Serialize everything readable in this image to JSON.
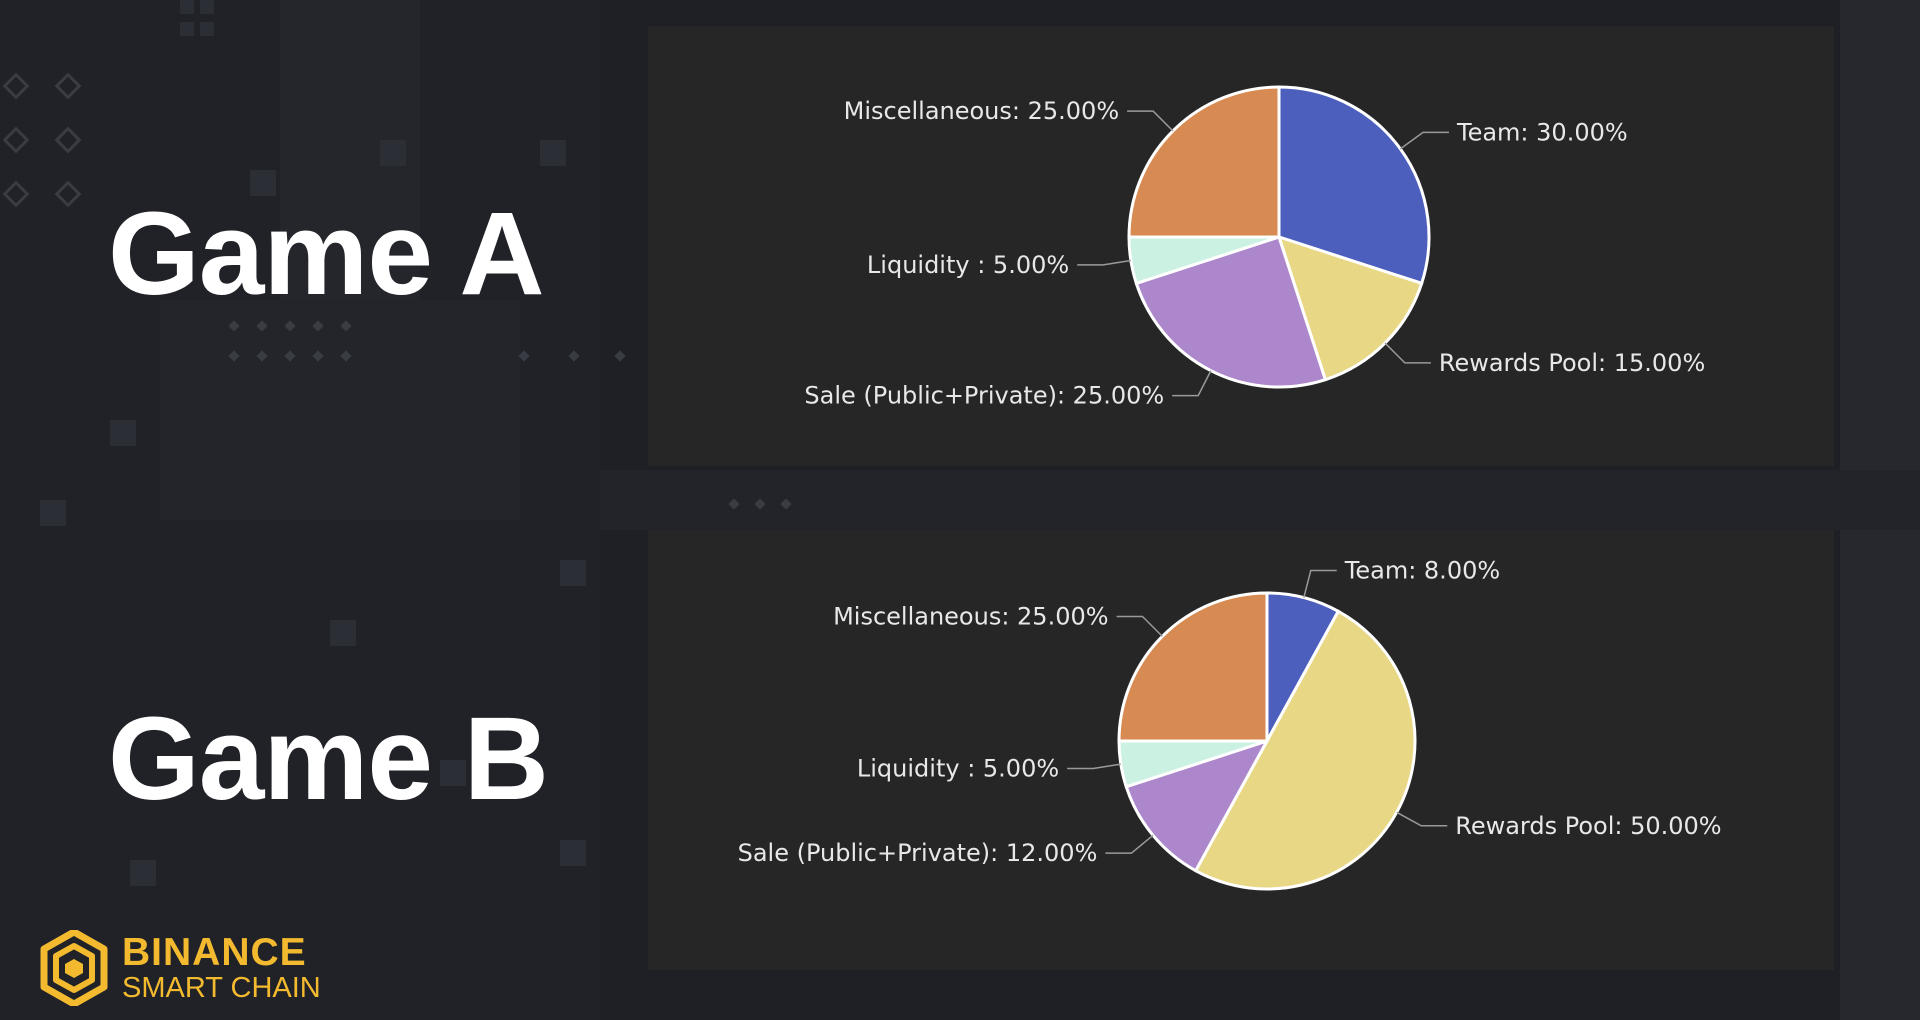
{
  "slide": {
    "game_a_title": "Game A",
    "game_b_title": "Game B",
    "logo_line1": "BINANCE",
    "logo_line2": "SMART CHAIN",
    "logo_icon": "binance-logo-icon",
    "brand_color": "#f3ba2f"
  },
  "chart_data": [
    {
      "type": "pie",
      "name": "Game A",
      "slices": [
        {
          "label": "Team: 30.00%",
          "value": 30,
          "color": "#4d5fbd"
        },
        {
          "label": "Rewards Pool: 15.00%",
          "value": 15,
          "color": "#e8d785"
        },
        {
          "label": "Sale (Public+Private): 25.00%",
          "value": 25,
          "color": "#ad87cb"
        },
        {
          "label": "Liquidity : 5.00%",
          "value": 5,
          "color": "#cbf1e2"
        },
        {
          "label": "Miscellaneous: 25.00%",
          "value": 25,
          "color": "#d78b52"
        }
      ]
    },
    {
      "type": "pie",
      "name": "Game B",
      "slices": [
        {
          "label": "Team: 8.00%",
          "value": 8,
          "color": "#4d5fbd"
        },
        {
          "label": "Rewards Pool: 50.00%",
          "value": 50,
          "color": "#e8d785"
        },
        {
          "label": "Sale (Public+Private): 12.00%",
          "value": 12,
          "color": "#ad87cb"
        },
        {
          "label": "Liquidity : 5.00%",
          "value": 5,
          "color": "#cbf1e2"
        },
        {
          "label": "Miscellaneous: 25.00%",
          "value": 25,
          "color": "#d78b52"
        }
      ]
    }
  ]
}
